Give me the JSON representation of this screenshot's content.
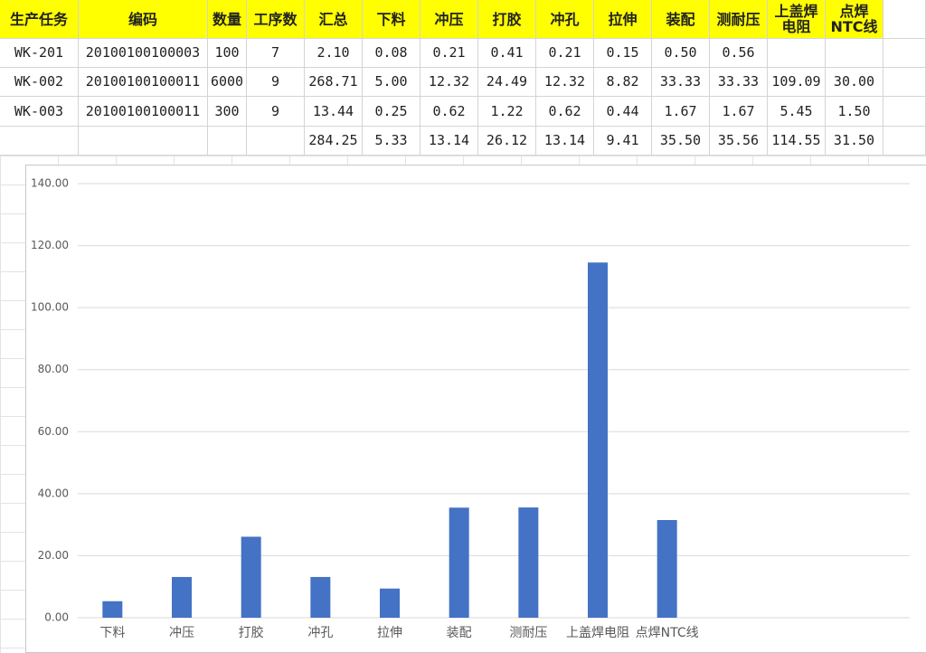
{
  "table": {
    "header": [
      "生产任务",
      "编码",
      "数量",
      "工序数",
      "汇总",
      "下料",
      "冲压",
      "打胶",
      "冲孔",
      "拉伸",
      "装配",
      "测耐压",
      "上盖焊电阻",
      "点焊NTC线"
    ],
    "rows": [
      [
        "WK-201",
        "20100100100003",
        "100",
        "7",
        "2.10",
        "0.08",
        "0.21",
        "0.41",
        "0.21",
        "0.15",
        "0.50",
        "0.56",
        null,
        null
      ],
      [
        "WK-002",
        "20100100100011",
        "6000",
        "9",
        "268.71",
        "5.00",
        "12.32",
        "24.49",
        "12.32",
        "8.82",
        "33.33",
        "33.33",
        "109.09",
        "30.00"
      ],
      [
        "WK-003",
        "20100100100011",
        "300",
        "9",
        "13.44",
        "0.25",
        "0.62",
        "1.22",
        "0.62",
        "0.44",
        "1.67",
        "1.67",
        "5.45",
        "1.50"
      ],
      [
        null,
        null,
        null,
        null,
        "284.25",
        "5.33",
        "13.14",
        "26.12",
        "13.14",
        "9.41",
        "35.50",
        "35.56",
        "114.55",
        "31.50"
      ]
    ]
  },
  "chart_data": {
    "type": "bar",
    "color": "#4472c4",
    "grid": true,
    "categories": [
      "下料",
      "冲压",
      "打胶",
      "冲孔",
      "拉伸",
      "装配",
      "测耐压",
      "上盖焊电阻",
      "点焊NTC线",
      null,
      null,
      null
    ],
    "values": [
      5.33,
      13.14,
      26.12,
      13.14,
      9.41,
      35.5,
      35.56,
      114.55,
      31.5,
      null,
      null,
      null
    ],
    "ylim": [
      0,
      140
    ],
    "yticks": [
      {
        "value": 0,
        "label": "0.00"
      },
      {
        "value": 20,
        "label": "20.00"
      },
      {
        "value": 40,
        "label": "40.00"
      },
      {
        "value": 60,
        "label": "60.00"
      },
      {
        "value": 80,
        "label": "80.00"
      },
      {
        "value": 100,
        "label": "100.00"
      },
      {
        "value": 120,
        "label": "120.00"
      },
      {
        "value": 140,
        "label": "140.00"
      }
    ]
  }
}
